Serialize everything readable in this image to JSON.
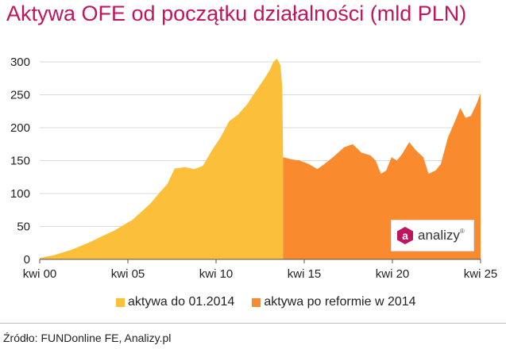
{
  "title": "Aktywa OFE od początku działalności (mld PLN)",
  "source": "Źródło: FUNDonline FE, Analizy.pl",
  "logo": {
    "mark": "a",
    "text": "analizy",
    "reg": "®"
  },
  "colors": {
    "title": "#c0155e",
    "series1": "#fbbf3a",
    "series2": "#f98a2d"
  },
  "chart_data": {
    "type": "area",
    "title": "Aktywa OFE od początku działalności (mld PLN)",
    "xlabel": "",
    "ylabel": "",
    "ylim": [
      0,
      300
    ],
    "yticks": [
      "0",
      "50",
      "100",
      "150",
      "200",
      "250",
      "300"
    ],
    "xticks": [
      "kwi 00",
      "kwi 05",
      "kwi 10",
      "kwi 15",
      "kwi 20",
      "kwi 25"
    ],
    "xrange": [
      2000.25,
      2025.25
    ],
    "grid": true,
    "legend_position": "bottom",
    "series": [
      {
        "name": "aktywa do 01.2014",
        "color": "#fbbf3a",
        "points": [
          [
            2000.25,
            2
          ],
          [
            2001.0,
            6
          ],
          [
            2002.0,
            14
          ],
          [
            2003.0,
            25
          ],
          [
            2004.0,
            38
          ],
          [
            2004.5,
            44
          ],
          [
            2005.0,
            52
          ],
          [
            2005.5,
            60
          ],
          [
            2006.0,
            72
          ],
          [
            2006.5,
            84
          ],
          [
            2007.0,
            100
          ],
          [
            2007.5,
            115
          ],
          [
            2007.9,
            138
          ],
          [
            2008.5,
            140
          ],
          [
            2009.0,
            137
          ],
          [
            2009.5,
            142
          ],
          [
            2010.0,
            165
          ],
          [
            2010.5,
            185
          ],
          [
            2011.0,
            210
          ],
          [
            2011.5,
            220
          ],
          [
            2012.0,
            235
          ],
          [
            2012.5,
            255
          ],
          [
            2013.0,
            275
          ],
          [
            2013.3,
            288
          ],
          [
            2013.5,
            300
          ],
          [
            2013.7,
            305
          ],
          [
            2013.9,
            295
          ],
          [
            2014.0,
            262
          ],
          [
            2014.05,
            155
          ]
        ]
      },
      {
        "name": "aktywa po reformie w 2014",
        "color": "#f98a2d",
        "points": [
          [
            2014.05,
            155
          ],
          [
            2014.5,
            152
          ],
          [
            2015.0,
            150
          ],
          [
            2015.5,
            145
          ],
          [
            2016.0,
            137
          ],
          [
            2016.5,
            147
          ],
          [
            2017.0,
            158
          ],
          [
            2017.5,
            170
          ],
          [
            2018.0,
            175
          ],
          [
            2018.5,
            162
          ],
          [
            2019.0,
            158
          ],
          [
            2019.3,
            150
          ],
          [
            2019.6,
            130
          ],
          [
            2019.9,
            135
          ],
          [
            2020.2,
            155
          ],
          [
            2020.5,
            150
          ],
          [
            2020.8,
            160
          ],
          [
            2021.2,
            178
          ],
          [
            2021.6,
            165
          ],
          [
            2022.0,
            155
          ],
          [
            2022.3,
            130
          ],
          [
            2022.7,
            135
          ],
          [
            2023.0,
            145
          ],
          [
            2023.4,
            185
          ],
          [
            2023.8,
            210
          ],
          [
            2024.1,
            230
          ],
          [
            2024.4,
            215
          ],
          [
            2024.7,
            218
          ],
          [
            2025.0,
            235
          ],
          [
            2025.25,
            252
          ]
        ]
      }
    ]
  }
}
